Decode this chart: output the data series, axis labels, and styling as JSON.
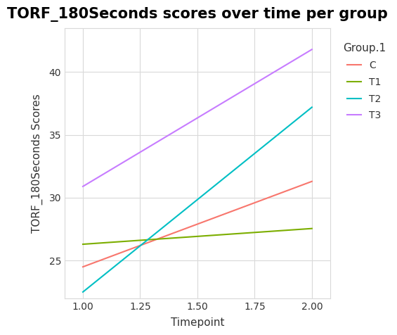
{
  "title": "TORF_180Seconds scores over time per group",
  "xlabel": "Timepoint",
  "ylabel": "TORF_180Seconds Scores",
  "legend_title": "Group.1",
  "xlim": [
    0.92,
    2.08
  ],
  "ylim": [
    22.0,
    43.5
  ],
  "xticks": [
    1.0,
    1.25,
    1.5,
    1.75,
    2.0
  ],
  "yticks": [
    25,
    30,
    35,
    40
  ],
  "series": [
    {
      "label": "C",
      "color": "#F8766D",
      "x": [
        1.0,
        2.0
      ],
      "y": [
        24.5,
        31.3
      ]
    },
    {
      "label": "T1",
      "color": "#7CAE00",
      "x": [
        1.0,
        2.0
      ],
      "y": [
        26.3,
        27.55
      ]
    },
    {
      "label": "T2",
      "color": "#00BFC4",
      "x": [
        1.0,
        2.0
      ],
      "y": [
        22.5,
        37.2
      ]
    },
    {
      "label": "T3",
      "color": "#C77CFF",
      "x": [
        1.0,
        2.0
      ],
      "y": [
        30.9,
        41.8
      ]
    }
  ],
  "panel_background": "#FFFFFF",
  "fig_background": "#FFFFFF",
  "grid_color": "#D9D9D9",
  "spine_color": "#D9D9D9",
  "text_color": "#333333",
  "title_fontsize": 15,
  "axis_label_fontsize": 11,
  "tick_fontsize": 10,
  "legend_title_fontsize": 11,
  "legend_fontsize": 10,
  "line_width": 1.5
}
